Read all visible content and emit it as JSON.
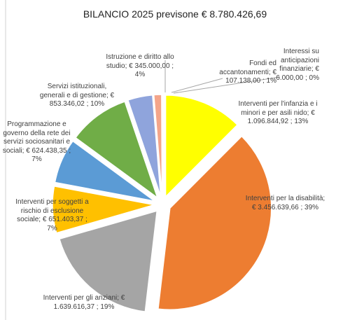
{
  "chart_data": {
    "type": "pie",
    "title": "BILANCIO 2025 previsone € 8.780.426,69",
    "categories": [
      "Interventi per l'infanzia e i minori e per asili nido; €",
      "Interventi per la disabilità; €",
      "Interventi per gli anziani; €",
      "Interventi per soggetti a rischio di esclusione sociale; €",
      "Programmazione e governo della rete dei servizi sociosanitari e sociali; €",
      "Servizi istituzionali, generali e di gestione; €",
      "Istruzione e diritto allo studio; €",
      "Fondi ed accantonamenti; €",
      "Interessi su anticipazioni finanziarie; €"
    ],
    "values": [
      1096844.92,
      3456639.66,
      1639616.37,
      651403.37,
      624438.35,
      853346.02,
      345000.0,
      107138.0,
      6000.0
    ],
    "value_labels": [
      "1.096.844,92 ; 13%",
      "3.456.639,66 ; 39%",
      "1.639.616,37 ; 19%",
      "651.403,37 ; 7%",
      "624.438,35 ; 7%",
      "853.346,02 ; 10%",
      "345.000,00 ; 4%",
      "107.138,00 ; 1%",
      "6.000,00 ; 0%"
    ],
    "colors": [
      "#ffff00",
      "#ed7d31",
      "#a5a5a5",
      "#ffc000",
      "#5b9bd5",
      "#70ad47",
      "#8fa4dc",
      "#f4a58a",
      "#a9c0e0"
    ]
  }
}
